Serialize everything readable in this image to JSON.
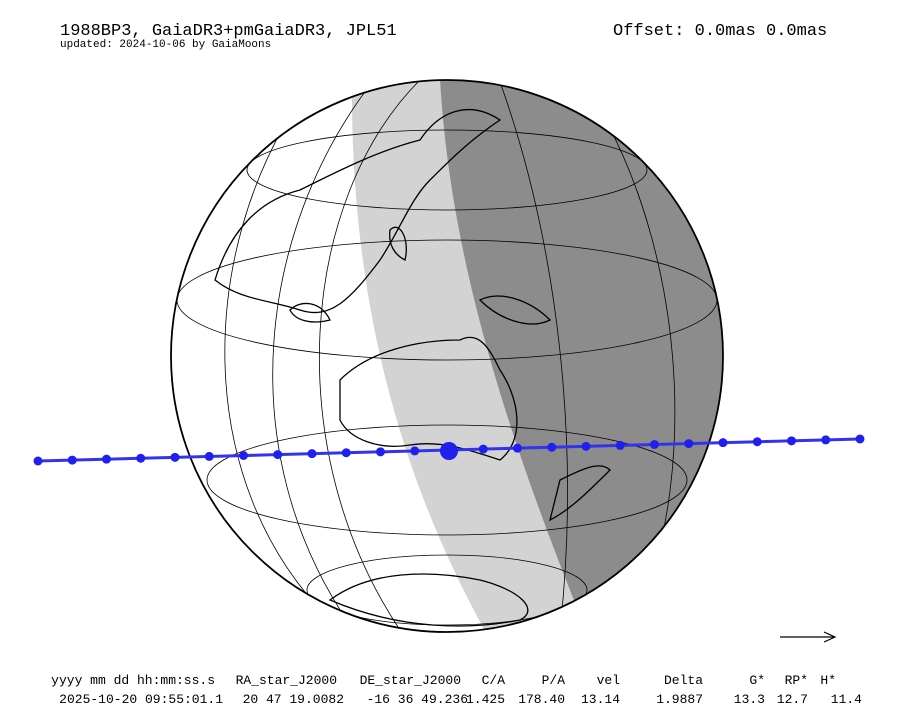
{
  "header": {
    "title": "1988BP3, GaiaDR3+pmGaiaDR3, JPL51",
    "updated": "updated: 2024-10-06 by GaiaMoons",
    "offset": "Offset: 0.0mas 0.0mas"
  },
  "table": {
    "columns": [
      "yyyy mm dd hh:mm:ss.s",
      "RA_star_J2000",
      "DE_star_J2000",
      "C/A",
      "P/A",
      "vel",
      "Delta",
      "G*",
      "RP*",
      "H*"
    ],
    "rows": [
      [
        "2025-10-20 09:55:01.1",
        "20 47 19.0082",
        "-16 36 49.236",
        "1.425",
        "178.40",
        "13.14",
        "1.9887",
        "13.3",
        "12.7",
        "11.4"
      ]
    ]
  }
}
